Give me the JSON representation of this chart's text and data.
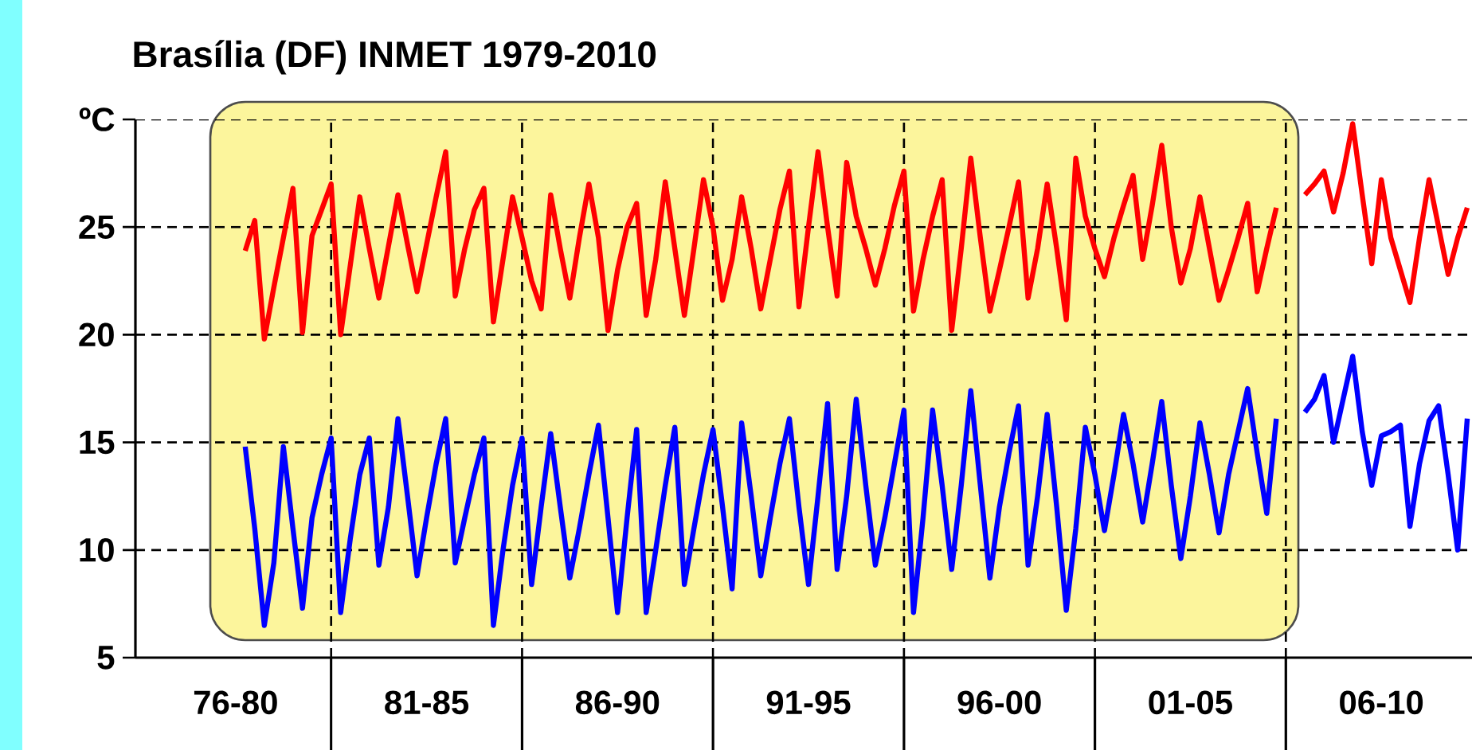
{
  "chart_data": {
    "type": "line",
    "title": "Brasília (DF) INMET 1979-2010",
    "categories": [
      null,
      null,
      null,
      null,
      null,
      null,
      null,
      null,
      null,
      null,
      "76-80",
      null,
      null,
      null,
      null,
      null,
      null,
      null,
      null,
      null,
      null,
      null,
      null,
      null,
      null,
      null,
      null,
      null,
      null,
      null,
      "81-85",
      null,
      null,
      null,
      null,
      null,
      null,
      null,
      null,
      null,
      null,
      null,
      null,
      null,
      null,
      null,
      null,
      null,
      null,
      null,
      "86-90",
      null,
      null,
      null,
      null,
      null,
      null,
      null,
      null,
      null,
      null,
      null,
      null,
      null,
      null,
      null,
      null,
      null,
      null,
      null,
      "91-95",
      null,
      null,
      null,
      null,
      null,
      null,
      null,
      null,
      null,
      null,
      null,
      null,
      null,
      null,
      null,
      null,
      null,
      null,
      null,
      "96-00",
      null,
      null,
      null,
      null,
      null,
      null,
      null,
      null,
      null,
      null,
      null,
      null,
      null,
      null,
      null,
      null,
      null,
      null,
      null,
      "01-05",
      null,
      null,
      null,
      null,
      null,
      null,
      null,
      null,
      null,
      null,
      null,
      null,
      null,
      null,
      null,
      null,
      null,
      null,
      null,
      "06-10",
      null,
      null,
      null,
      null,
      null,
      null,
      null,
      null,
      null
    ],
    "ylim": [
      5,
      30
    ],
    "yticks": [
      5,
      10,
      15,
      20,
      25,
      {
        "value": 30,
        "label": "ºC"
      }
    ],
    "grid": true,
    "series": [
      {
        "color": "#ff0000",
        "values": [
          null,
          null,
          null,
          null,
          null,
          null,
          null,
          null,
          null,
          null,
          null,
          23.9,
          25.3,
          19.8,
          22.2,
          24.5,
          26.8,
          20.1,
          24.6,
          25.8,
          27.0,
          20.0,
          23.2,
          26.4,
          24.0,
          21.7,
          24.1,
          26.5,
          24.2,
          22.0,
          24.2,
          26.4,
          28.5,
          21.8,
          24.0,
          25.8,
          26.8,
          20.6,
          23.5,
          26.4,
          24.5,
          22.5,
          21.2,
          26.5,
          24.0,
          21.7,
          24.5,
          27.0,
          24.5,
          20.2,
          23.0,
          25.0,
          26.1,
          20.9,
          23.5,
          27.1,
          24.0,
          20.9,
          24.0,
          27.2,
          25.0,
          21.6,
          23.5,
          26.4,
          24.0,
          21.2,
          23.5,
          25.8,
          27.6,
          21.3,
          25.0,
          28.5,
          25.0,
          21.8,
          28.0,
          25.5,
          24.0,
          22.3,
          24.0,
          26.0,
          27.6,
          21.1,
          23.5,
          25.5,
          27.2,
          20.2,
          24.0,
          28.2,
          24.5,
          21.1,
          23.0,
          25.0,
          27.1,
          21.7,
          24.0,
          27.0,
          24.0,
          20.7,
          28.2,
          25.5,
          24.0,
          22.7,
          24.5,
          26.0,
          27.4,
          23.5,
          26.0,
          28.8,
          25.0,
          22.4,
          24.0,
          26.4,
          24.0,
          21.6,
          23.0,
          24.5,
          26.1,
          22.0,
          24.0,
          25.9,
          null,
          null,
          26.5,
          27.0,
          27.6,
          25.7,
          27.5,
          29.8,
          26.5,
          23.3,
          27.2,
          24.5,
          23.0,
          21.5,
          24.5,
          27.2,
          25.0,
          22.8,
          24.5,
          25.9
        ]
      },
      {
        "color": "#0000ff",
        "values": [
          null,
          null,
          null,
          null,
          null,
          null,
          null,
          null,
          null,
          null,
          null,
          14.8,
          11.0,
          6.5,
          9.4,
          14.8,
          11.0,
          7.3,
          11.5,
          13.5,
          15.2,
          7.1,
          10.5,
          13.5,
          15.2,
          9.3,
          12.0,
          16.1,
          12.5,
          8.8,
          11.5,
          14.0,
          16.1,
          9.4,
          11.5,
          13.5,
          15.2,
          6.5,
          10.0,
          13.0,
          15.2,
          8.4,
          12.0,
          15.4,
          12.0,
          8.7,
          11.0,
          13.5,
          15.8,
          11.5,
          7.1,
          11.5,
          15.6,
          7.1,
          10.0,
          13.0,
          15.7,
          8.4,
          11.0,
          13.5,
          15.6,
          12.0,
          8.2,
          15.9,
          12.5,
          8.8,
          11.5,
          14.0,
          16.1,
          12.0,
          8.4,
          12.5,
          16.8,
          9.1,
          12.5,
          17.0,
          13.0,
          9.3,
          11.5,
          14.0,
          16.5,
          7.1,
          11.5,
          16.5,
          13.0,
          9.1,
          13.0,
          17.4,
          13.0,
          8.7,
          12.0,
          14.5,
          16.7,
          9.3,
          12.5,
          16.3,
          12.0,
          7.2,
          11.0,
          15.7,
          13.5,
          10.9,
          13.5,
          16.3,
          14.0,
          11.3,
          14.0,
          16.9,
          13.0,
          9.6,
          12.5,
          15.9,
          13.5,
          10.8,
          13.5,
          15.5,
          17.5,
          14.5,
          11.7,
          16.1,
          null,
          null,
          16.4,
          17.0,
          18.1,
          15.0,
          17.0,
          19.0,
          15.5,
          13.0,
          15.3,
          15.5,
          15.8,
          11.1,
          14.0,
          16.0,
          16.7,
          13.5,
          10.0,
          16.1
        ]
      }
    ]
  }
}
